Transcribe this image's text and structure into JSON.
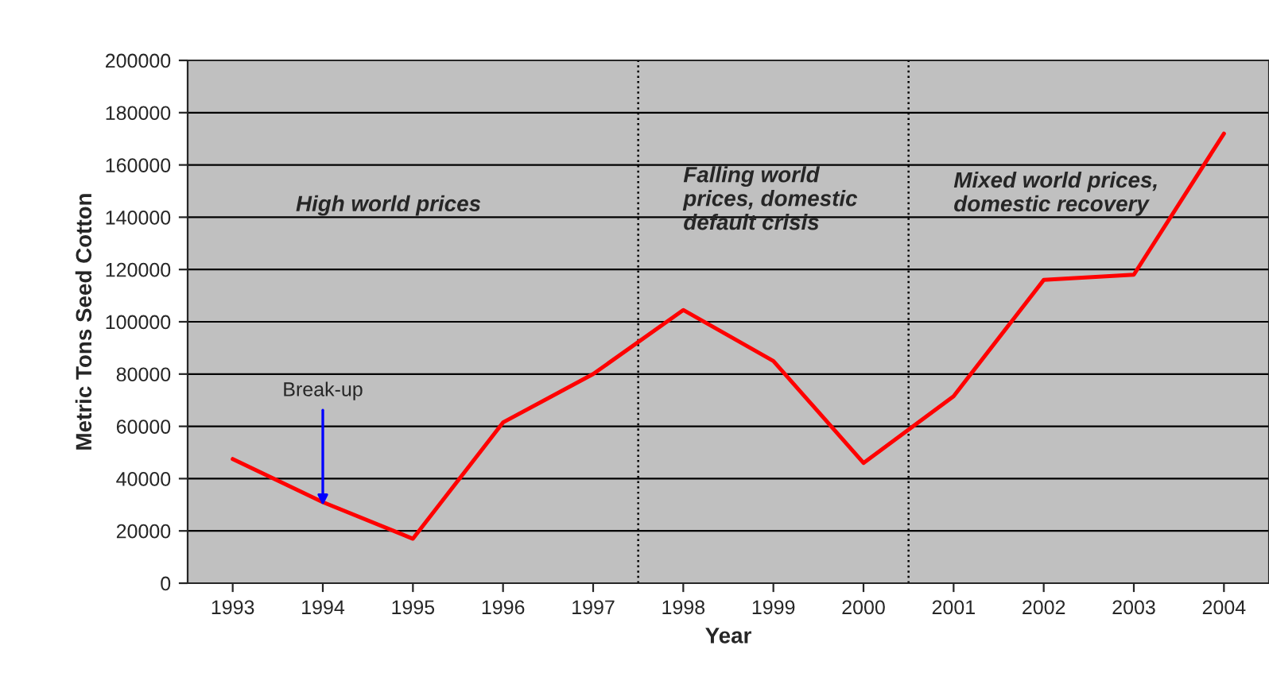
{
  "chart_data": {
    "type": "line",
    "xlabel": "Year",
    "ylabel": "Metric Tons Seed Cotton",
    "x": [
      1993,
      1994,
      1995,
      1996,
      1997,
      1998,
      1999,
      2000,
      2001,
      2002,
      2003,
      2004
    ],
    "series": [
      {
        "color": "#ff0000",
        "values": [
          47500,
          31000,
          17000,
          61500,
          80000,
          104500,
          85000,
          46000,
          71500,
          116000,
          118000,
          172000
        ]
      }
    ],
    "xlim": [
      1992.5,
      2004.5
    ],
    "xticks": [
      1993,
      1994,
      1995,
      1996,
      1997,
      1998,
      1999,
      2000,
      2001,
      2002,
      2003,
      2004
    ],
    "ylim": [
      0,
      200000
    ],
    "yticks": [
      0,
      20000,
      40000,
      60000,
      80000,
      100000,
      120000,
      140000,
      160000,
      180000,
      200000
    ],
    "grid": "y",
    "marker": "none",
    "line_style": "solid",
    "ref_lines": [
      {
        "axis": "x",
        "value": 1997.5,
        "color": "#000000",
        "line_style": "dotted"
      },
      {
        "axis": "x",
        "value": 2000.5,
        "color": "#000000",
        "line_style": "dotted"
      }
    ],
    "annotations": [
      "High world prices",
      "Falling world\nprices, domestic\ndefault crisis",
      "Mixed world prices,\ndomestic recovery",
      {
        "text": "Break-up",
        "x": 1994,
        "y": 28000
      }
    ]
  }
}
